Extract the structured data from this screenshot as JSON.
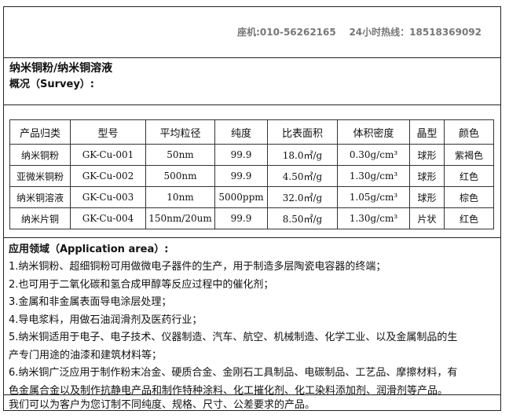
{
  "header": {
    "phone": "座机:010-56262165    24小时热线：18518369092"
  },
  "intro": {
    "title": "纳米铜粉/纳米铜溶液",
    "survey": "概况（Survey）:"
  },
  "table": {
    "headers": [
      "产品归类",
      "型号",
      "平均粒径",
      "纯度",
      "比表面积",
      "体积密度",
      "晶型",
      "颜色"
    ],
    "rows": [
      [
        "纳米铜粉",
        "GK-Cu-001",
        "50nm",
        "99.9",
        "18.0㎡/g",
        "0.30g/cm³",
        "球形",
        "紫褐色"
      ],
      [
        "亚微米铜粉",
        "GK-Cu-002",
        "500nm",
        "99.9",
        "4.50㎡/g",
        "1.30g/cm³",
        "球形",
        "红色"
      ],
      [
        "纳米铜溶液",
        "GK-Cu-003",
        "10nm",
        "5000ppm",
        "32.0㎡/g",
        "1.05g/cm³",
        "球形",
        "棕色"
      ],
      [
        "纳米片铜",
        "GK-Cu-004",
        "150nm/20um",
        "99.9",
        "8.50㎡/g",
        "1.30g/cm³",
        "片状",
        "红色"
      ]
    ]
  },
  "application": {
    "heading": "应用领域（Application area）:",
    "lines": [
      "1.纳米铜粉、超细铜粉可用做微电子器件的生产，用于制造多层陶瓷电容器的终端；",
      "2.也可用于二氧化碳和氢合成甲醇等反应过程中的催化剂；",
      "3.金属和非金属表面导电涂层处理；",
      "4.导电浆料，用做石油润滑剂及医药行业；",
      "5.纳米铜适用于电子、电子技术、仪器制造、汽车、航空、机械制造、化学工业、以及金属制品的生",
      "产专门用途的油漆和建筑材料等；",
      "6.纳米铜广泛应用于制作粉末冶金、硬质合金、金刚石工具制品、电碳制品、工艺品、摩擦材料，有",
      "色金属合金以及制作抗静电产品和制作特种涂料、化工摧化剂、化工染料添加剂、润滑剂等产品。"
    ]
  },
  "footer": {
    "text": "我们可以为客户为您订制不同纯度、规格、尺寸、公差要求的产品。"
  }
}
